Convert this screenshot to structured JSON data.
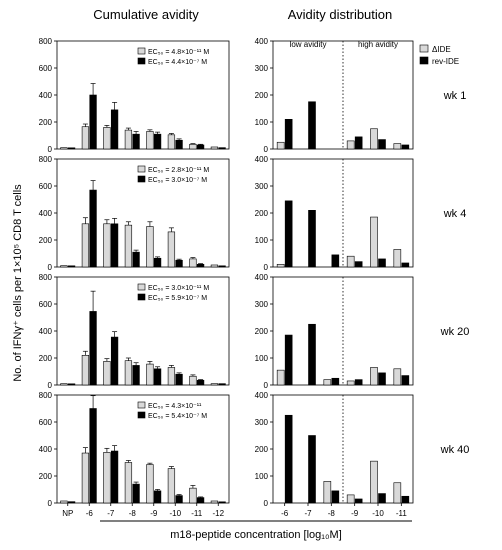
{
  "headers": {
    "left": "Cumulative avidity",
    "right": "Avidity distribution"
  },
  "y_axis_label": "No. of IFNγ⁺ cells per 1×10⁵ CD8 T cells",
  "x_axis_label": "m18-peptide concentration [log₁₀M]",
  "distribution_labels": {
    "low": "low avidity",
    "high": "high avidity"
  },
  "legend": {
    "series_a": "ΔIDE",
    "series_b": "rev-IDE"
  },
  "colors": {
    "series_a": "#d9d9d9",
    "series_b": "#000000",
    "axis": "#000000"
  },
  "left_x_ticks": [
    "NP",
    "-6",
    "-7",
    "-8",
    "-9",
    "-10",
    "-11",
    "-12"
  ],
  "right_x_ticks": [
    "-6",
    "-7",
    "-8",
    "-9",
    "-10",
    "-11"
  ],
  "chart_data": [
    {
      "type": "bar",
      "panel": "cumulative",
      "week": "wk 1",
      "categories": [
        "NP",
        "-6",
        "-7",
        "-8",
        "-9",
        "-10",
        "-11",
        "-12"
      ],
      "ylim": [
        0,
        800
      ],
      "yticks": [
        0,
        200,
        400,
        600,
        800
      ],
      "ec50_a": "EC₅₀ = 4.8×10⁻¹¹ M",
      "ec50_b": "EC₅₀ = 4.4×10⁻⁷ M",
      "series": [
        {
          "name": "ΔIDE",
          "values": [
            10,
            165,
            160,
            140,
            130,
            105,
            35,
            15
          ],
          "errors": [
            0,
            20,
            15,
            15,
            12,
            10,
            5,
            0
          ]
        },
        {
          "name": "rev-IDE",
          "values": [
            8,
            400,
            290,
            110,
            110,
            65,
            30,
            10
          ],
          "errors": [
            0,
            85,
            55,
            20,
            15,
            10,
            5,
            0
          ]
        }
      ]
    },
    {
      "type": "bar",
      "panel": "distribution",
      "week": "wk 1",
      "categories": [
        "-6",
        "-7",
        "-8",
        "-9",
        "-10",
        "-11"
      ],
      "ylim": [
        0,
        400
      ],
      "yticks": [
        0,
        100,
        200,
        300,
        400
      ],
      "series": [
        {
          "name": "ΔIDE",
          "values": [
            25,
            0,
            0,
            30,
            75,
            20
          ]
        },
        {
          "name": "rev-IDE",
          "values": [
            110,
            175,
            0,
            45,
            35,
            15
          ]
        }
      ]
    },
    {
      "type": "bar",
      "panel": "cumulative",
      "week": "wk 4",
      "categories": [
        "NP",
        "-6",
        "-7",
        "-8",
        "-9",
        "-10",
        "-11",
        "-12"
      ],
      "ylim": [
        0,
        800
      ],
      "yticks": [
        0,
        200,
        400,
        600,
        800
      ],
      "ec50_a": "EC₅₀ = 2.8×10⁻¹¹ M",
      "ec50_b": "EC₅₀ = 3.0×10⁻⁷ M",
      "series": [
        {
          "name": "ΔIDE",
          "values": [
            10,
            320,
            320,
            310,
            300,
            260,
            60,
            15
          ],
          "errors": [
            0,
            45,
            30,
            25,
            35,
            30,
            10,
            0
          ]
        },
        {
          "name": "rev-IDE",
          "values": [
            8,
            570,
            320,
            110,
            65,
            50,
            20,
            8
          ],
          "errors": [
            0,
            70,
            40,
            15,
            10,
            8,
            5,
            0
          ]
        }
      ]
    },
    {
      "type": "bar",
      "panel": "distribution",
      "week": "wk 4",
      "categories": [
        "-6",
        "-7",
        "-8",
        "-9",
        "-10",
        "-11"
      ],
      "ylim": [
        0,
        400
      ],
      "yticks": [
        0,
        100,
        200,
        300,
        400
      ],
      "series": [
        {
          "name": "ΔIDE",
          "values": [
            10,
            0,
            0,
            40,
            185,
            65
          ]
        },
        {
          "name": "rev-IDE",
          "values": [
            245,
            210,
            45,
            20,
            30,
            15
          ]
        }
      ]
    },
    {
      "type": "bar",
      "panel": "cumulative",
      "week": "wk 20",
      "categories": [
        "NP",
        "-6",
        "-7",
        "-8",
        "-9",
        "-10",
        "-11",
        "-12"
      ],
      "ylim": [
        0,
        800
      ],
      "yticks": [
        0,
        200,
        400,
        600,
        800
      ],
      "ec50_a": "EC₅₀ = 3.0×10⁻¹¹ M",
      "ec50_b": "EC₅₀ = 5.9×10⁻⁷ M",
      "series": [
        {
          "name": "ΔIDE",
          "values": [
            10,
            220,
            175,
            180,
            155,
            130,
            65,
            10
          ],
          "errors": [
            0,
            30,
            20,
            20,
            20,
            15,
            10,
            0
          ]
        },
        {
          "name": "rev-IDE",
          "values": [
            8,
            545,
            355,
            145,
            120,
            80,
            35,
            10
          ],
          "errors": [
            0,
            150,
            40,
            20,
            15,
            10,
            5,
            0
          ]
        }
      ]
    },
    {
      "type": "bar",
      "panel": "distribution",
      "week": "wk 20",
      "categories": [
        "-6",
        "-7",
        "-8",
        "-9",
        "-10",
        "-11"
      ],
      "ylim": [
        0,
        400
      ],
      "yticks": [
        0,
        100,
        200,
        300,
        400
      ],
      "series": [
        {
          "name": "ΔIDE",
          "values": [
            55,
            0,
            20,
            15,
            65,
            60
          ]
        },
        {
          "name": "rev-IDE",
          "values": [
            185,
            225,
            25,
            20,
            45,
            35
          ]
        }
      ]
    },
    {
      "type": "bar",
      "panel": "cumulative",
      "week": "wk 40",
      "categories": [
        "NP",
        "-6",
        "-7",
        "-8",
        "-9",
        "-10",
        "-11",
        "-12"
      ],
      "ylim": [
        0,
        800
      ],
      "yticks": [
        0,
        200,
        400,
        600,
        800
      ],
      "ec50_a": "EC₅₀ = 4.3×10⁻¹¹",
      "ec50_b": "EC₅₀ = 5.4×10⁻⁷ M",
      "series": [
        {
          "name": "ΔIDE",
          "values": [
            15,
            370,
            375,
            300,
            285,
            255,
            110,
            15
          ],
          "errors": [
            0,
            40,
            30,
            15,
            10,
            15,
            20,
            0
          ]
        },
        {
          "name": "rev-IDE",
          "values": [
            10,
            700,
            385,
            140,
            90,
            55,
            40,
            8
          ],
          "errors": [
            0,
            95,
            40,
            15,
            10,
            8,
            5,
            0
          ]
        }
      ]
    },
    {
      "type": "bar",
      "panel": "distribution",
      "week": "wk 40",
      "categories": [
        "-6",
        "-7",
        "-8",
        "-9",
        "-10",
        "-11"
      ],
      "ylim": [
        0,
        400
      ],
      "yticks": [
        0,
        100,
        200,
        300,
        400
      ],
      "series": [
        {
          "name": "ΔIDE",
          "values": [
            0,
            0,
            80,
            30,
            155,
            75
          ]
        },
        {
          "name": "rev-IDE",
          "values": [
            325,
            250,
            45,
            15,
            35,
            25
          ]
        }
      ]
    }
  ]
}
